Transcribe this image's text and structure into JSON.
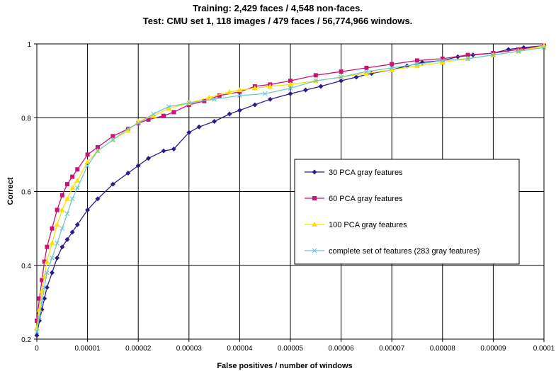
{
  "chart_data": {
    "type": "line",
    "title": "Training: 2,429 faces / 4,548 non-faces.",
    "subtitle": "Test: CMU set 1, 118 images / 479 faces / 56,774,966 windows.",
    "xlabel": "False positives / number of windows",
    "ylabel": "Correct",
    "xlim": [
      0,
      0.0001
    ],
    "ylim": [
      0.2,
      1
    ],
    "x_ticks": [
      "0",
      "0.00001",
      "0.00002",
      "0.00003",
      "0.00004",
      "0.00005",
      "0.00006",
      "0.00007",
      "0.00008",
      "0.00009",
      "0.0001"
    ],
    "y_ticks": [
      "0.2",
      "0.4",
      "0.6",
      "0.8",
      "1"
    ],
    "grid": true,
    "legend_position": "center-right",
    "series": [
      {
        "name": "30 PCA gray features",
        "color": "#2E1B8A",
        "marker": "diamond",
        "x": [
          0,
          5e-07,
          1e-06,
          1.5e-06,
          2e-06,
          3e-06,
          4e-06,
          5e-06,
          6e-06,
          7e-06,
          8e-06,
          1e-05,
          1.2e-05,
          1.5e-05,
          1.8e-05,
          2e-05,
          2.2e-05,
          2.5e-05,
          2.7e-05,
          3e-05,
          3.2e-05,
          3.5e-05,
          3.8e-05,
          4e-05,
          4.3e-05,
          4.6e-05,
          5e-05,
          5.3e-05,
          5.6e-05,
          6e-05,
          6.3e-05,
          6.6e-05,
          7e-05,
          7.3e-05,
          7.6e-05,
          8e-05,
          8.3e-05,
          8.6e-05,
          9e-05,
          9.3e-05,
          9.6e-05,
          0.0001
        ],
        "y": [
          0.21,
          0.25,
          0.28,
          0.31,
          0.34,
          0.38,
          0.42,
          0.45,
          0.47,
          0.49,
          0.51,
          0.55,
          0.58,
          0.62,
          0.65,
          0.67,
          0.69,
          0.71,
          0.715,
          0.76,
          0.775,
          0.79,
          0.81,
          0.82,
          0.835,
          0.85,
          0.865,
          0.875,
          0.885,
          0.9,
          0.91,
          0.92,
          0.93,
          0.94,
          0.95,
          0.955,
          0.965,
          0.97,
          0.975,
          0.985,
          0.99,
          0.995
        ]
      },
      {
        "name": "60 PCA gray features",
        "color": "#CC1177",
        "marker": "square",
        "x": [
          0,
          5e-07,
          1e-06,
          1.5e-06,
          2e-06,
          3e-06,
          4e-06,
          5e-06,
          6e-06,
          7e-06,
          8e-06,
          1e-05,
          1.2e-05,
          1.5e-05,
          1.8e-05,
          2e-05,
          2.2e-05,
          2.5e-05,
          2.7e-05,
          3e-05,
          3.3e-05,
          3.6e-05,
          4e-05,
          4.3e-05,
          4.6e-05,
          5e-05,
          5.5e-05,
          6e-05,
          6.5e-05,
          7e-05,
          7.5e-05,
          8e-05,
          8.5e-05,
          9e-05,
          9.5e-05,
          0.0001
        ],
        "y": [
          0.25,
          0.31,
          0.36,
          0.41,
          0.45,
          0.5,
          0.55,
          0.59,
          0.62,
          0.64,
          0.66,
          0.7,
          0.72,
          0.75,
          0.77,
          0.785,
          0.795,
          0.805,
          0.815,
          0.835,
          0.845,
          0.86,
          0.87,
          0.885,
          0.89,
          0.9,
          0.915,
          0.925,
          0.935,
          0.945,
          0.955,
          0.96,
          0.97,
          0.975,
          0.985,
          0.995
        ]
      },
      {
        "name": "100 PCA gray features",
        "color": "#FFE000",
        "marker": "triangle",
        "x": [
          0,
          5e-07,
          1e-06,
          1.5e-06,
          2e-06,
          3e-06,
          4e-06,
          5e-06,
          6e-06,
          7e-06,
          8e-06,
          1e-05,
          1.2e-05,
          1.5e-05,
          1.8e-05,
          2e-05,
          2.3e-05,
          2.6e-05,
          3e-05,
          3.4e-05,
          3.8e-05,
          4e-05,
          4.3e-05,
          4.6e-05,
          5e-05,
          5.5e-05,
          6e-05,
          6.5e-05,
          7e-05,
          7.5e-05,
          8e-05,
          8.5e-05,
          9e-05,
          9.5e-05,
          0.0001
        ],
        "y": [
          0.23,
          0.28,
          0.33,
          0.37,
          0.41,
          0.46,
          0.51,
          0.55,
          0.58,
          0.61,
          0.63,
          0.68,
          0.71,
          0.74,
          0.765,
          0.79,
          0.805,
          0.825,
          0.84,
          0.855,
          0.87,
          0.875,
          0.88,
          0.885,
          0.89,
          0.9,
          0.91,
          0.92,
          0.93,
          0.94,
          0.95,
          0.96,
          0.97,
          0.98,
          0.995
        ]
      },
      {
        "name": "complete set of features (283 gray features)",
        "color": "#6FC7CF",
        "marker": "x",
        "x": [
          0,
          5e-07,
          1e-06,
          1.5e-06,
          2e-06,
          3e-06,
          4e-06,
          5e-06,
          6e-06,
          7e-06,
          8e-06,
          1e-05,
          1.2e-05,
          1.5e-05,
          1.8e-05,
          2e-05,
          2.3e-05,
          2.6e-05,
          3e-05,
          3.5e-05,
          4e-05,
          4.5e-05,
          5e-05,
          5.5e-05,
          6e-05,
          6.5e-05,
          7e-05,
          7.5e-05,
          8e-05,
          8.5e-05,
          9e-05,
          9.5e-05,
          0.0001
        ],
        "y": [
          0.22,
          0.26,
          0.3,
          0.34,
          0.38,
          0.42,
          0.46,
          0.5,
          0.54,
          0.58,
          0.61,
          0.67,
          0.71,
          0.74,
          0.77,
          0.785,
          0.81,
          0.83,
          0.84,
          0.85,
          0.86,
          0.865,
          0.88,
          0.9,
          0.91,
          0.925,
          0.935,
          0.945,
          0.955,
          0.96,
          0.97,
          0.98,
          0.99
        ]
      }
    ]
  }
}
